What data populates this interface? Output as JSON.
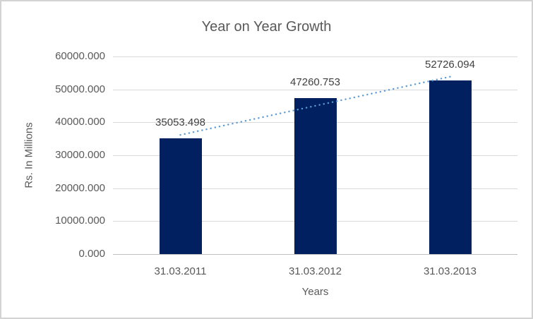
{
  "window": {
    "background": "#FFFFFF",
    "border_color": "#D3D3D3"
  },
  "chart_data": {
    "type": "bar",
    "title": "Year on Year Growth",
    "categories": [
      "31.03.2011",
      "31.03.2012",
      "31.03.2013"
    ],
    "values": [
      35053.498,
      47260.753,
      52726.094
    ],
    "data_labels": [
      "35053.498",
      "47260.753",
      "52726.094"
    ],
    "xlabel": "Years",
    "ylabel": "Rs. In Millions",
    "ylim": [
      0,
      60000
    ],
    "ytick_step": 10000,
    "ytick_labels": [
      "60000.000",
      "50000.000",
      "40000.000",
      "30000.000",
      "20000.000",
      "10000.000",
      "0.000"
    ],
    "grid": true,
    "legend": "none",
    "bar_color": "#002060",
    "trendline": {
      "type": "linear",
      "style": "dotted",
      "color": "#5B9BD5"
    },
    "colors": {
      "gridline": "#D9D9D9",
      "axis_line": "#BFBFBF",
      "title_text": "#595959",
      "tick_text": "#595959",
      "data_label_text": "#404040"
    }
  }
}
